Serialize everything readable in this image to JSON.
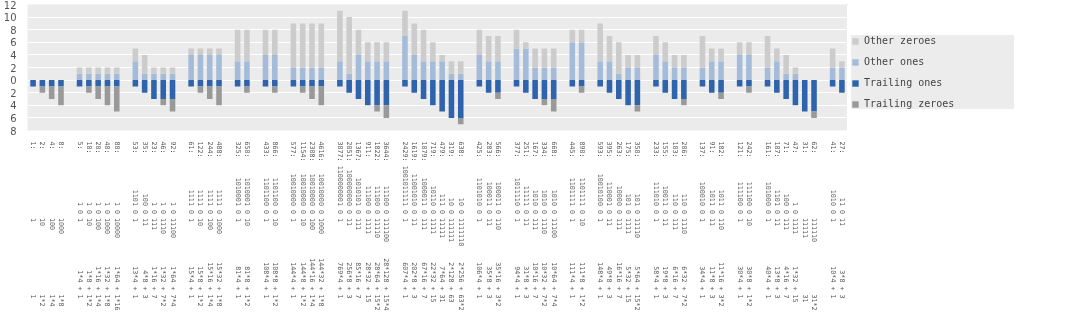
{
  "chart_data": {
    "type": "bar",
    "stacked": true,
    "categories": [
      "1:                 1                  1",
      "2:                 10                 1*2",
      "4:                 100                1*4",
      "8:                 1000               1*8",
      null,
      "5:             1 0 1            1*4 + 1",
      "10:            1 0 10           1*8 + 1*2",
      "20:            1 0 100         1*16 + 1*4",
      "40:            1 0 1000        1*32 + 1*8",
      "80:            1 0 10000       1*64 + 1*16",
      null,
      "53:         1101 0 1           13*4 + 1",
      "35:          100 0 11           4*8 + 3",
      "23:            1 0 111         1*16 + 7",
      "46:            1 0 1110        1*32 + 7*2",
      "92:            1 0 11100       1*64 + 7*4",
      null,
      "61:         1111 0 1           15*4 + 1",
      "122:        1111 0 10          15*8 + 1*2",
      "244:        1111 0 100        15*16 + 1*4",
      "488:        1111 0 1000       15*32 + 1*8",
      null,
      "325:     1010001 0 1           81*4 + 1",
      "650:     1010001 0 10          81*8 + 1*2",
      null,
      "433:     1101100 0 1          108*4 + 1",
      "866:     1101100 0 10         108*8 + 1*2",
      null,
      "577:    10010000 0 1          144*4 + 1",
      "1154:   10010000 0 10         144*8 + 1*2",
      "2308:   10010000 0 100       144*16 + 1*4",
      "4616:   10010000 0 1000      144*32 + 1*8",
      null,
      "3077: 1100000001 0 1          769*4 + 1",
      "2051:  100000000 0 11         256*8 + 3",
      "1367:    1010101 0 111        85*16 + 7",
      "911:       11100 0 1111       28*32 + 15",
      "1822:      11100 0 11110      28*64 + 15*2",
      "3644:      11100 0 111100    28*128 + 15*4",
      null,
      "2429: 1001011111 0 1          607*4 + 1",
      "1619:   11001010 0 11         202*8 + 3",
      "1079:    1000011 0 111        67*16 + 7",
      "719:       10110 0 1111       22*32 + 15",
      "479:         111 0 11111       7*64 + 31",
      "319:          10 0 111111     2*128 + 63",
      "638:          10 0 1111110    2*256 + 63*2",
      null,
      "425:     1101010 0 1          106*4 + 1",
      "283:      100011 0 11          35*8 + 3",
      "566:      100011 0 110        35*16 + 3*2",
      null,
      "377:     1011110 0 1           94*4 + 1",
      "251:       11111 0 11          31*8 + 3",
      "167:        1010 0 111        10*16 + 7",
      "334:        1010 0 1110       10*32 + 7*2",
      "668:        1010 0 11100      10*64 + 7*4",
      null,
      "445:     1101111 0 1          111*4 + 1",
      "890:     1101111 0 10         111*8 + 1*2",
      null,
      "593:    10010100 0 1          148*4 + 1",
      "395:      110001 0 11          49*8 + 3",
      "263:       10000 0 111        16*16 + 7",
      "175:         101 0 1111        5*32 + 15",
      "350:         101 0 11110       5*64 + 15*2",
      null,
      "233:      111010 0 1           58*4 + 1",
      "155:       10011 0 11          19*8 + 3",
      "103:         110 0 111         6*16 + 7",
      "206:         110 0 1110        6*32 + 7*2",
      null,
      "137:      100010 0 1           34*4 + 1",
      "91:         1011 0 11          11*8 + 3",
      "182:        1011 0 110        11*16 + 3*2",
      null,
      "121:      111100 0 1           30*4 + 1",
      "242:      111100 0 10          30*8 + 1*2",
      null,
      "161:      101000 0 1           40*4 + 1",
      "107:        1101 0 11          13*8 + 3",
      "71:          100 0 111         4*16 + 7",
      "47:            1 0 1111        1*32 + 15",
      "31:                11111              31",
      "62:                111110             31*2",
      null,
      "41:         1010 0 1           10*4 + 1",
      "27:           11 0 11           3*8 + 3"
    ],
    "series": [
      {
        "name": "Other ones",
        "color": "#a4bcd9",
        "values": [
          0,
          0,
          0,
          0,
          null,
          1,
          1,
          1,
          1,
          1,
          null,
          3,
          1,
          1,
          1,
          1,
          null,
          4,
          4,
          4,
          4,
          null,
          3,
          3,
          null,
          4,
          4,
          null,
          2,
          2,
          2,
          2,
          null,
          3,
          1,
          4,
          3,
          3,
          3,
          null,
          7,
          4,
          3,
          3,
          3,
          1,
          1,
          null,
          4,
          3,
          3,
          null,
          5,
          5,
          2,
          2,
          2,
          null,
          6,
          6,
          null,
          3,
          3,
          1,
          2,
          2,
          null,
          4,
          3,
          2,
          2,
          null,
          2,
          3,
          3,
          null,
          4,
          4,
          null,
          2,
          3,
          1,
          1,
          0,
          0,
          null,
          2,
          2
        ]
      },
      {
        "name": "Other zeroes",
        "color": "#cccccc",
        "values": [
          0,
          0,
          0,
          0,
          null,
          1,
          1,
          1,
          1,
          1,
          null,
          2,
          3,
          1,
          1,
          1,
          null,
          1,
          1,
          1,
          1,
          null,
          5,
          5,
          null,
          4,
          4,
          null,
          7,
          7,
          7,
          7,
          null,
          8,
          9,
          4,
          3,
          3,
          3,
          null,
          4,
          5,
          5,
          3,
          1,
          2,
          2,
          null,
          4,
          4,
          4,
          null,
          3,
          1,
          3,
          3,
          3,
          null,
          2,
          2,
          null,
          6,
          4,
          5,
          2,
          2,
          null,
          3,
          3,
          2,
          2,
          null,
          5,
          2,
          2,
          null,
          2,
          2,
          null,
          5,
          2,
          3,
          1,
          0,
          0,
          null,
          3,
          1
        ]
      },
      {
        "name": "Trailing ones",
        "color": "#2f64ad",
        "values": [
          -1,
          -1,
          -1,
          -1,
          null,
          -1,
          -1,
          -1,
          -1,
          -1,
          null,
          -1,
          -2,
          -3,
          -3,
          -3,
          null,
          -1,
          -1,
          -1,
          -1,
          null,
          -1,
          -1,
          null,
          -1,
          -1,
          null,
          -1,
          -1,
          -1,
          -1,
          null,
          -1,
          -2,
          -3,
          -4,
          -4,
          -4,
          null,
          -1,
          -2,
          -3,
          -4,
          -5,
          -6,
          -6,
          null,
          -1,
          -2,
          -2,
          null,
          -1,
          -2,
          -3,
          -3,
          -3,
          null,
          -1,
          -1,
          null,
          -1,
          -2,
          -3,
          -4,
          -4,
          null,
          -1,
          -2,
          -3,
          -3,
          null,
          -1,
          -2,
          -2,
          null,
          -1,
          -1,
          null,
          -1,
          -2,
          -3,
          -4,
          -5,
          -5,
          null,
          -1,
          -2
        ]
      },
      {
        "name": "Trailing zeroes",
        "color": "#999999",
        "values": [
          0,
          -1,
          -2,
          -3,
          null,
          0,
          -1,
          -2,
          -3,
          -4,
          null,
          0,
          0,
          0,
          -1,
          -2,
          null,
          0,
          -1,
          -2,
          -3,
          null,
          0,
          -1,
          null,
          0,
          -1,
          null,
          0,
          -1,
          -2,
          -3,
          null,
          0,
          0,
          0,
          0,
          -1,
          -2,
          null,
          0,
          0,
          0,
          0,
          0,
          0,
          -1,
          null,
          0,
          0,
          -1,
          null,
          0,
          0,
          0,
          -1,
          -2,
          null,
          0,
          -1,
          null,
          0,
          0,
          0,
          0,
          -1,
          null,
          0,
          0,
          0,
          -1,
          null,
          0,
          0,
          -1,
          null,
          0,
          -1,
          null,
          0,
          0,
          0,
          0,
          0,
          -1,
          null,
          0,
          0
        ]
      }
    ],
    "ylim": [
      -8,
      12
    ],
    "yticks": [
      {
        "value": -8,
        "label": "8"
      },
      {
        "value": -6,
        "label": "6"
      },
      {
        "value": -4,
        "label": "4"
      },
      {
        "value": -2,
        "label": "2"
      },
      0,
      2,
      4,
      6,
      8,
      10,
      12
    ],
    "grid": "y",
    "legend": "right"
  }
}
